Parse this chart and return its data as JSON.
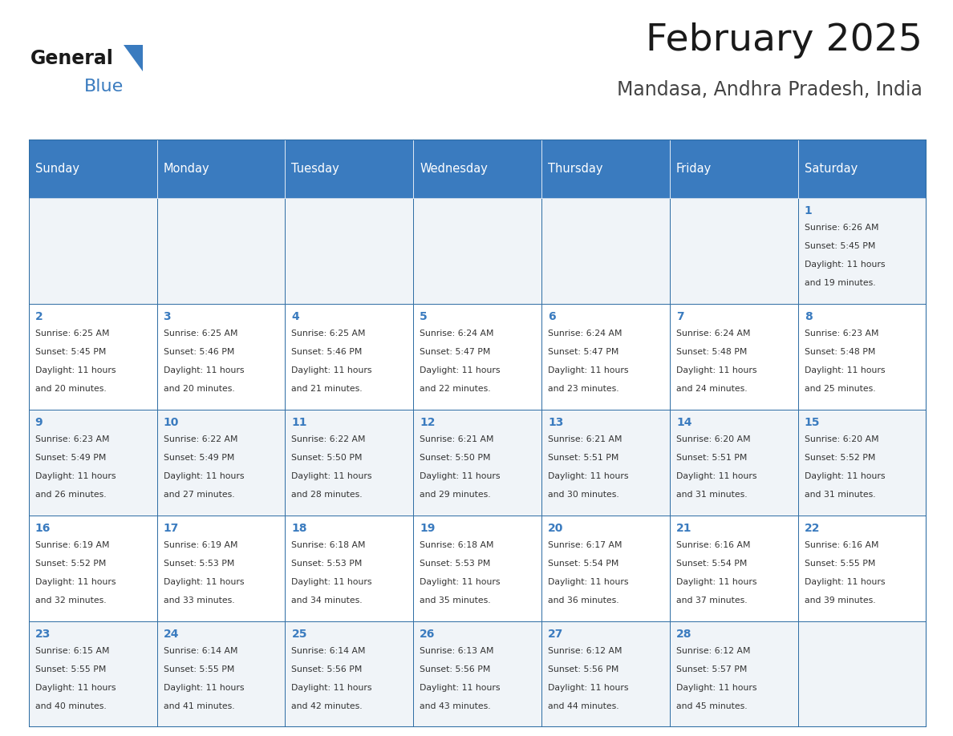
{
  "title": "February 2025",
  "subtitle": "Mandasa, Andhra Pradesh, India",
  "logo_text1": "General",
  "logo_text2": "Blue",
  "header_color": "#3a7bbf",
  "header_text_color": "#ffffff",
  "cell_bg_light": "#f0f4f8",
  "cell_bg_white": "#ffffff",
  "day_number_color": "#3a7bbf",
  "text_color": "#333333",
  "border_color": "#2e6da4",
  "days_of_week": [
    "Sunday",
    "Monday",
    "Tuesday",
    "Wednesday",
    "Thursday",
    "Friday",
    "Saturday"
  ],
  "calendar": [
    [
      null,
      null,
      null,
      null,
      null,
      null,
      1
    ],
    [
      2,
      3,
      4,
      5,
      6,
      7,
      8
    ],
    [
      9,
      10,
      11,
      12,
      13,
      14,
      15
    ],
    [
      16,
      17,
      18,
      19,
      20,
      21,
      22
    ],
    [
      23,
      24,
      25,
      26,
      27,
      28,
      null
    ]
  ],
  "cell_data": {
    "1": {
      "sunrise": "6:26 AM",
      "sunset": "5:45 PM",
      "daylight_hours": "11 hours",
      "daylight_mins": "and 19 minutes."
    },
    "2": {
      "sunrise": "6:25 AM",
      "sunset": "5:45 PM",
      "daylight_hours": "11 hours",
      "daylight_mins": "and 20 minutes."
    },
    "3": {
      "sunrise": "6:25 AM",
      "sunset": "5:46 PM",
      "daylight_hours": "11 hours",
      "daylight_mins": "and 20 minutes."
    },
    "4": {
      "sunrise": "6:25 AM",
      "sunset": "5:46 PM",
      "daylight_hours": "11 hours",
      "daylight_mins": "and 21 minutes."
    },
    "5": {
      "sunrise": "6:24 AM",
      "sunset": "5:47 PM",
      "daylight_hours": "11 hours",
      "daylight_mins": "and 22 minutes."
    },
    "6": {
      "sunrise": "6:24 AM",
      "sunset": "5:47 PM",
      "daylight_hours": "11 hours",
      "daylight_mins": "and 23 minutes."
    },
    "7": {
      "sunrise": "6:24 AM",
      "sunset": "5:48 PM",
      "daylight_hours": "11 hours",
      "daylight_mins": "and 24 minutes."
    },
    "8": {
      "sunrise": "6:23 AM",
      "sunset": "5:48 PM",
      "daylight_hours": "11 hours",
      "daylight_mins": "and 25 minutes."
    },
    "9": {
      "sunrise": "6:23 AM",
      "sunset": "5:49 PM",
      "daylight_hours": "11 hours",
      "daylight_mins": "and 26 minutes."
    },
    "10": {
      "sunrise": "6:22 AM",
      "sunset": "5:49 PM",
      "daylight_hours": "11 hours",
      "daylight_mins": "and 27 minutes."
    },
    "11": {
      "sunrise": "6:22 AM",
      "sunset": "5:50 PM",
      "daylight_hours": "11 hours",
      "daylight_mins": "and 28 minutes."
    },
    "12": {
      "sunrise": "6:21 AM",
      "sunset": "5:50 PM",
      "daylight_hours": "11 hours",
      "daylight_mins": "and 29 minutes."
    },
    "13": {
      "sunrise": "6:21 AM",
      "sunset": "5:51 PM",
      "daylight_hours": "11 hours",
      "daylight_mins": "and 30 minutes."
    },
    "14": {
      "sunrise": "6:20 AM",
      "sunset": "5:51 PM",
      "daylight_hours": "11 hours",
      "daylight_mins": "and 31 minutes."
    },
    "15": {
      "sunrise": "6:20 AM",
      "sunset": "5:52 PM",
      "daylight_hours": "11 hours",
      "daylight_mins": "and 31 minutes."
    },
    "16": {
      "sunrise": "6:19 AM",
      "sunset": "5:52 PM",
      "daylight_hours": "11 hours",
      "daylight_mins": "and 32 minutes."
    },
    "17": {
      "sunrise": "6:19 AM",
      "sunset": "5:53 PM",
      "daylight_hours": "11 hours",
      "daylight_mins": "and 33 minutes."
    },
    "18": {
      "sunrise": "6:18 AM",
      "sunset": "5:53 PM",
      "daylight_hours": "11 hours",
      "daylight_mins": "and 34 minutes."
    },
    "19": {
      "sunrise": "6:18 AM",
      "sunset": "5:53 PM",
      "daylight_hours": "11 hours",
      "daylight_mins": "and 35 minutes."
    },
    "20": {
      "sunrise": "6:17 AM",
      "sunset": "5:54 PM",
      "daylight_hours": "11 hours",
      "daylight_mins": "and 36 minutes."
    },
    "21": {
      "sunrise": "6:16 AM",
      "sunset": "5:54 PM",
      "daylight_hours": "11 hours",
      "daylight_mins": "and 37 minutes."
    },
    "22": {
      "sunrise": "6:16 AM",
      "sunset": "5:55 PM",
      "daylight_hours": "11 hours",
      "daylight_mins": "and 39 minutes."
    },
    "23": {
      "sunrise": "6:15 AM",
      "sunset": "5:55 PM",
      "daylight_hours": "11 hours",
      "daylight_mins": "and 40 minutes."
    },
    "24": {
      "sunrise": "6:14 AM",
      "sunset": "5:55 PM",
      "daylight_hours": "11 hours",
      "daylight_mins": "and 41 minutes."
    },
    "25": {
      "sunrise": "6:14 AM",
      "sunset": "5:56 PM",
      "daylight_hours": "11 hours",
      "daylight_mins": "and 42 minutes."
    },
    "26": {
      "sunrise": "6:13 AM",
      "sunset": "5:56 PM",
      "daylight_hours": "11 hours",
      "daylight_mins": "and 43 minutes."
    },
    "27": {
      "sunrise": "6:12 AM",
      "sunset": "5:56 PM",
      "daylight_hours": "11 hours",
      "daylight_mins": "and 44 minutes."
    },
    "28": {
      "sunrise": "6:12 AM",
      "sunset": "5:57 PM",
      "daylight_hours": "11 hours",
      "daylight_mins": "and 45 minutes."
    }
  }
}
